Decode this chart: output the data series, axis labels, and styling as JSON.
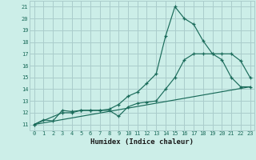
{
  "title": "",
  "xlabel": "Humidex (Indice chaleur)",
  "bg_color": "#cceee8",
  "grid_color": "#aacccc",
  "line_color": "#1a6b5a",
  "xlim": [
    -0.5,
    23.5
  ],
  "ylim": [
    10.5,
    21.5
  ],
  "xticks": [
    0,
    1,
    2,
    3,
    4,
    5,
    6,
    7,
    8,
    9,
    10,
    11,
    12,
    13,
    14,
    15,
    16,
    17,
    18,
    19,
    20,
    21,
    22,
    23
  ],
  "yticks": [
    11,
    12,
    13,
    14,
    15,
    16,
    17,
    18,
    19,
    20,
    21
  ],
  "line1_x": [
    0,
    1,
    2,
    3,
    4,
    5,
    6,
    7,
    8,
    9,
    10,
    11,
    12,
    13,
    14,
    15,
    16,
    17,
    18,
    19,
    20,
    21,
    22,
    23
  ],
  "line1_y": [
    11.0,
    11.4,
    11.3,
    12.2,
    12.1,
    12.2,
    12.2,
    12.2,
    12.3,
    12.7,
    13.4,
    13.75,
    14.5,
    15.3,
    18.5,
    21.0,
    20.0,
    19.5,
    18.1,
    17.0,
    16.5,
    15.0,
    14.2,
    14.2
  ],
  "line2_x": [
    0,
    3,
    4,
    5,
    6,
    7,
    8,
    9,
    10,
    11,
    12,
    13,
    14,
    15,
    16,
    17,
    18,
    19,
    20,
    21,
    22,
    23
  ],
  "line2_y": [
    11.0,
    12.0,
    12.0,
    12.2,
    12.2,
    12.2,
    12.2,
    11.7,
    12.5,
    12.8,
    12.9,
    13.0,
    14.0,
    15.0,
    16.5,
    17.0,
    17.0,
    17.0,
    17.0,
    17.0,
    16.4,
    15.0
  ],
  "line3_x": [
    0,
    23
  ],
  "line3_y": [
    11.0,
    14.2
  ]
}
